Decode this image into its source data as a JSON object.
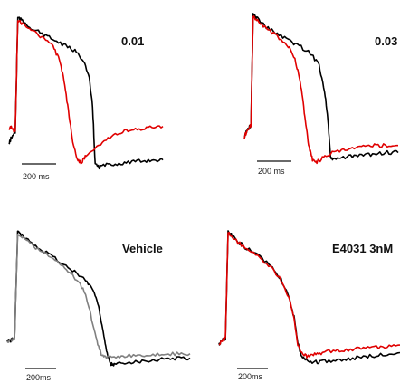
{
  "chart_data": [
    {
      "type": "line",
      "panel_label": "0.01",
      "scale_bar": "200 ms",
      "x_unit": "ms",
      "series": [
        {
          "color": "#000000",
          "x": [
            0,
            10,
            28,
            40,
            60,
            100,
            150,
            200,
            250,
            300,
            340,
            365,
            380,
            392,
            410,
            450,
            500,
            550,
            600,
            650,
            700
          ],
          "y": [
            -0.1,
            -0.05,
            0.0,
            0.99,
            0.96,
            0.9,
            0.85,
            0.8,
            0.75,
            0.7,
            0.62,
            0.46,
            0.22,
            -0.28,
            -0.3,
            -0.28,
            -0.27,
            -0.26,
            -0.25,
            -0.24,
            -0.24
          ]
        },
        {
          "color": "#e00000",
          "x": [
            0,
            10,
            28,
            40,
            60,
            100,
            150,
            200,
            230,
            250,
            270,
            290,
            310,
            330,
            350,
            400,
            450,
            500,
            550,
            600,
            650,
            700
          ],
          "y": [
            0.02,
            0.05,
            0.0,
            0.97,
            0.94,
            0.88,
            0.82,
            0.74,
            0.62,
            0.45,
            0.18,
            -0.08,
            -0.24,
            -0.26,
            -0.2,
            -0.12,
            -0.05,
            -0.01,
            0.02,
            0.03,
            0.04,
            0.05
          ]
        }
      ]
    },
    {
      "type": "line",
      "panel_label": "0.03",
      "scale_bar": "200 ms",
      "x_unit": "ms",
      "series": [
        {
          "color": "#000000",
          "x": [
            0,
            10,
            30,
            40,
            60,
            100,
            150,
            200,
            250,
            300,
            340,
            365,
            380,
            392,
            410,
            450,
            500,
            550,
            600,
            650,
            700
          ],
          "y": [
            -0.05,
            0.0,
            0.05,
            0.99,
            0.95,
            0.88,
            0.82,
            0.77,
            0.72,
            0.66,
            0.56,
            0.34,
            0.1,
            -0.22,
            -0.24,
            -0.22,
            -0.21,
            -0.2,
            -0.19,
            -0.18,
            -0.18
          ]
        },
        {
          "color": "#e00000",
          "x": [
            0,
            10,
            30,
            40,
            60,
            100,
            150,
            200,
            230,
            250,
            265,
            280,
            295,
            310,
            330,
            360,
            400,
            450,
            500,
            550,
            600,
            650,
            700
          ],
          "y": [
            -0.05,
            0.0,
            0.05,
            0.97,
            0.94,
            0.87,
            0.8,
            0.72,
            0.6,
            0.46,
            0.28,
            0.05,
            -0.14,
            -0.24,
            -0.26,
            -0.22,
            -0.18,
            -0.16,
            -0.14,
            -0.13,
            -0.12,
            -0.12,
            -0.12
          ]
        }
      ]
    },
    {
      "type": "line",
      "panel_label": "Vehicle",
      "scale_bar": "200ms",
      "x_unit": "ms",
      "series": [
        {
          "color": "#000000",
          "x": [
            0,
            10,
            28,
            40,
            60,
            100,
            150,
            200,
            250,
            300,
            330,
            350,
            365,
            380,
            395,
            410,
            450,
            500,
            550,
            600,
            650,
            700
          ],
          "y": [
            -0.02,
            -0.02,
            0.0,
            0.99,
            0.95,
            0.88,
            0.8,
            0.72,
            0.63,
            0.55,
            0.45,
            0.3,
            0.1,
            -0.12,
            -0.24,
            -0.24,
            -0.22,
            -0.21,
            -0.2,
            -0.19,
            -0.18,
            -0.18
          ]
        },
        {
          "color": "#808080",
          "x": [
            0,
            10,
            28,
            40,
            60,
            100,
            150,
            200,
            240,
            270,
            300,
            320,
            340,
            360,
            380,
            410,
            450,
            500,
            550,
            600,
            650,
            700
          ],
          "y": [
            -0.02,
            -0.02,
            0.0,
            0.97,
            0.94,
            0.86,
            0.78,
            0.7,
            0.61,
            0.54,
            0.42,
            0.22,
            0.0,
            -0.14,
            -0.17,
            -0.17,
            -0.16,
            -0.15,
            -0.15,
            -0.14,
            -0.14,
            -0.14
          ]
        }
      ]
    },
    {
      "type": "line",
      "panel_label": "E4031 3nM",
      "scale_bar": "200ms",
      "x_unit": "ms",
      "series": [
        {
          "color": "#000000",
          "x": [
            0,
            10,
            25,
            35,
            60,
            100,
            150,
            200,
            240,
            270,
            290,
            305,
            320,
            340,
            370,
            400,
            450,
            500,
            550,
            600,
            650,
            700
          ],
          "y": [
            -0.05,
            -0.02,
            0.0,
            0.99,
            0.93,
            0.85,
            0.77,
            0.68,
            0.55,
            0.4,
            0.2,
            -0.05,
            -0.16,
            -0.2,
            -0.22,
            -0.21,
            -0.2,
            -0.19,
            -0.17,
            -0.16,
            -0.14,
            -0.13
          ]
        },
        {
          "color": "#e00000",
          "x": [
            0,
            10,
            25,
            35,
            60,
            100,
            150,
            200,
            240,
            270,
            290,
            305,
            320,
            340,
            370,
            400,
            450,
            500,
            550,
            600,
            650,
            700
          ],
          "y": [
            -0.05,
            -0.02,
            0.0,
            0.98,
            0.92,
            0.84,
            0.76,
            0.67,
            0.54,
            0.39,
            0.18,
            -0.05,
            -0.14,
            -0.16,
            -0.15,
            -0.13,
            -0.11,
            -0.1,
            -0.09,
            -0.08,
            -0.07,
            -0.06
          ]
        }
      ]
    }
  ]
}
